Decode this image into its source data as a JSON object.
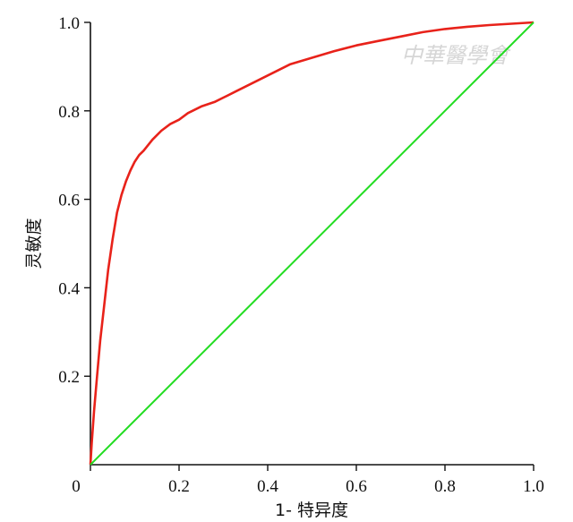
{
  "watermark": "中華醫學會",
  "chart_data": {
    "type": "line",
    "title": "",
    "xlabel": "1- 特异度",
    "ylabel": "灵敏度",
    "xlim": [
      0,
      1.0
    ],
    "ylim": [
      0,
      1.0
    ],
    "x_ticks": [
      "0",
      "0.2",
      "0.4",
      "0.6",
      "0.8",
      "1.0"
    ],
    "y_ticks": [
      "0",
      "0.2",
      "0.4",
      "0.6",
      "0.8",
      "1.0"
    ],
    "grid": false,
    "legend": "none",
    "series": [
      {
        "color": "#e8221a",
        "x": [
          0,
          0.003,
          0.008,
          0.015,
          0.022,
          0.03,
          0.04,
          0.05,
          0.06,
          0.07,
          0.08,
          0.09,
          0.1,
          0.11,
          0.12,
          0.14,
          0.16,
          0.18,
          0.2,
          0.22,
          0.25,
          0.28,
          0.3,
          0.33,
          0.36,
          0.4,
          0.45,
          0.5,
          0.55,
          0.6,
          0.65,
          0.7,
          0.75,
          0.8,
          0.85,
          0.9,
          0.95,
          1.0
        ],
        "y": [
          0,
          0.05,
          0.12,
          0.2,
          0.28,
          0.35,
          0.44,
          0.51,
          0.57,
          0.61,
          0.64,
          0.665,
          0.685,
          0.7,
          0.71,
          0.735,
          0.755,
          0.77,
          0.78,
          0.795,
          0.81,
          0.82,
          0.83,
          0.845,
          0.86,
          0.88,
          0.905,
          0.92,
          0.935,
          0.948,
          0.958,
          0.968,
          0.978,
          0.985,
          0.99,
          0.994,
          0.997,
          1.0
        ]
      },
      {
        "color": "#22dd22",
        "x": [
          0,
          1.0
        ],
        "y": [
          0,
          1.0
        ]
      }
    ]
  }
}
